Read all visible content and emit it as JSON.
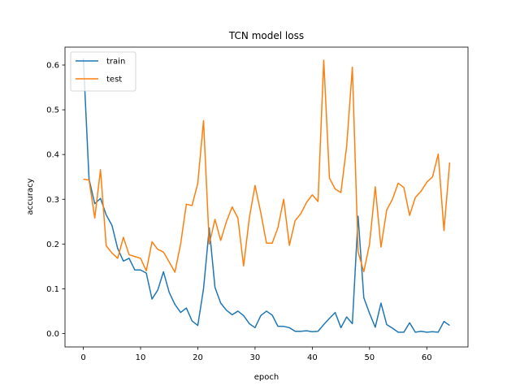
{
  "chart_data": {
    "type": "line",
    "title": "TCN model loss",
    "xlabel": "epoch",
    "ylabel": "accuracy",
    "xlim": [
      -3.2,
      67.2
    ],
    "ylim": [
      -0.03,
      0.64
    ],
    "xticks": [
      0,
      10,
      20,
      30,
      40,
      50,
      60
    ],
    "yticks": [
      0.0,
      0.1,
      0.2,
      0.3,
      0.4,
      0.5,
      0.6
    ],
    "legend_position": "top-left",
    "grid": false,
    "series": [
      {
        "name": "train",
        "color": "#1f77b4",
        "x": [
          0,
          1,
          2,
          3,
          4,
          5,
          6,
          7,
          8,
          9,
          10,
          11,
          12,
          13,
          14,
          15,
          16,
          17,
          18,
          19,
          20,
          21,
          22,
          23,
          24,
          25,
          26,
          27,
          28,
          29,
          30,
          31,
          32,
          33,
          34,
          35,
          36,
          37,
          38,
          39,
          40,
          41,
          42,
          43,
          44,
          45,
          46,
          47,
          48,
          49,
          50,
          51,
          52,
          53,
          54,
          55,
          56,
          57,
          58,
          59,
          60,
          61,
          62,
          63,
          64
        ],
        "values": [
          0.615,
          0.345,
          0.29,
          0.302,
          0.265,
          0.242,
          0.19,
          0.162,
          0.168,
          0.142,
          0.142,
          0.135,
          0.077,
          0.097,
          0.138,
          0.092,
          0.065,
          0.047,
          0.057,
          0.028,
          0.018,
          0.1,
          0.236,
          0.103,
          0.068,
          0.052,
          0.042,
          0.05,
          0.04,
          0.022,
          0.013,
          0.04,
          0.05,
          0.041,
          0.016,
          0.016,
          0.013,
          0.005,
          0.005,
          0.006,
          0.004,
          0.005,
          0.02,
          0.034,
          0.047,
          0.013,
          0.037,
          0.022,
          0.262,
          0.08,
          0.045,
          0.014,
          0.068,
          0.02,
          0.012,
          0.003,
          0.003,
          0.024,
          0.003,
          0.005,
          0.003,
          0.004,
          0.003,
          0.027,
          0.018
        ]
      },
      {
        "name": "test",
        "color": "#ff7f0e",
        "x": [
          0,
          1,
          2,
          3,
          4,
          5,
          6,
          7,
          8,
          9,
          10,
          11,
          12,
          13,
          14,
          15,
          16,
          17,
          18,
          19,
          20,
          21,
          22,
          23,
          24,
          25,
          26,
          27,
          28,
          29,
          30,
          31,
          32,
          33,
          34,
          35,
          36,
          37,
          38,
          39,
          40,
          41,
          42,
          43,
          44,
          45,
          46,
          47,
          48,
          49,
          50,
          51,
          52,
          53,
          54,
          55,
          56,
          57,
          58,
          59,
          60,
          61,
          62,
          63,
          64
        ],
        "values": [
          0.345,
          0.343,
          0.258,
          0.366,
          0.196,
          0.18,
          0.168,
          0.215,
          0.176,
          0.172,
          0.168,
          0.14,
          0.205,
          0.188,
          0.182,
          0.16,
          0.137,
          0.2,
          0.289,
          0.286,
          0.336,
          0.476,
          0.2,
          0.255,
          0.208,
          0.25,
          0.283,
          0.258,
          0.151,
          0.258,
          0.331,
          0.27,
          0.202,
          0.202,
          0.237,
          0.3,
          0.197,
          0.252,
          0.268,
          0.293,
          0.31,
          0.295,
          0.611,
          0.347,
          0.323,
          0.315,
          0.418,
          0.595,
          0.182,
          0.138,
          0.2,
          0.328,
          0.193,
          0.276,
          0.3,
          0.336,
          0.326,
          0.264,
          0.304,
          0.318,
          0.338,
          0.35,
          0.401,
          0.23,
          0.382
        ]
      }
    ]
  }
}
